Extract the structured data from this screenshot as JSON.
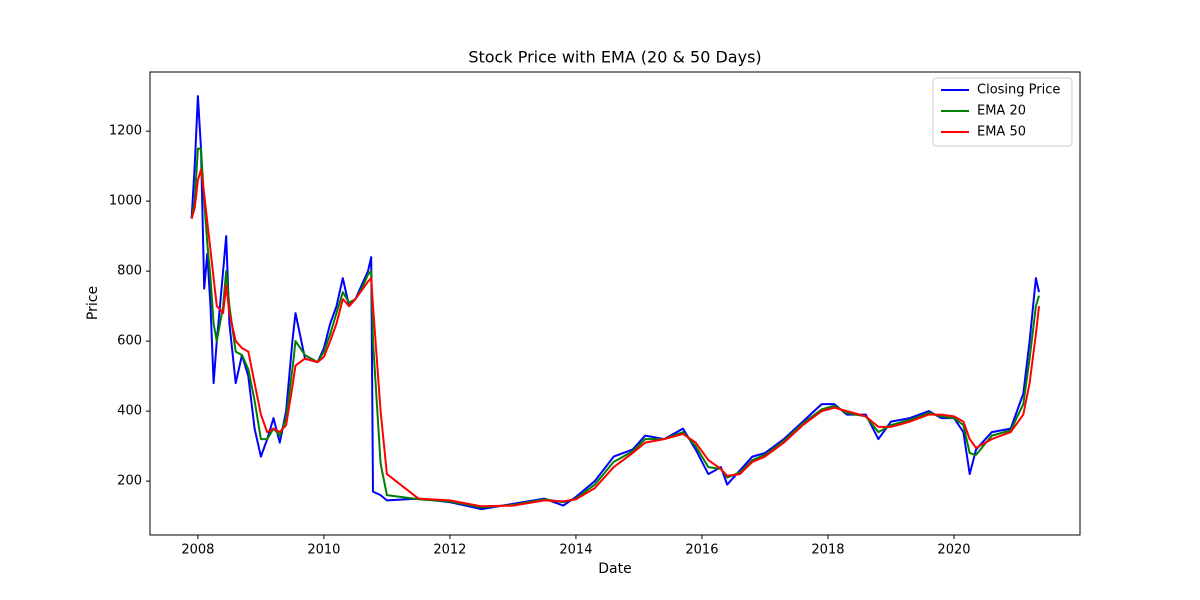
{
  "chart_data": {
    "type": "line",
    "title": "Stock Price with EMA (20 & 50 Days)",
    "x_label": "Date",
    "y_label": "Price",
    "x": [
      2007.9,
      2007.95,
      2008.0,
      2008.05,
      2008.1,
      2008.15,
      2008.2,
      2008.25,
      2008.3,
      2008.4,
      2008.45,
      2008.5,
      2008.6,
      2008.7,
      2008.8,
      2008.9,
      2009.0,
      2009.1,
      2009.2,
      2009.3,
      2009.4,
      2009.5,
      2009.55,
      2009.7,
      2009.9,
      2010.0,
      2010.1,
      2010.2,
      2010.3,
      2010.4,
      2010.5,
      2010.6,
      2010.7,
      2010.75,
      2010.78,
      2010.9,
      2011.0,
      2011.5,
      2012.0,
      2012.5,
      2013.0,
      2013.5,
      2013.8,
      2014.0,
      2014.3,
      2014.6,
      2014.9,
      2015.1,
      2015.4,
      2015.7,
      2015.9,
      2016.1,
      2016.3,
      2016.4,
      2016.6,
      2016.8,
      2017.0,
      2017.3,
      2017.6,
      2017.9,
      2018.1,
      2018.3,
      2018.6,
      2018.8,
      2019.0,
      2019.3,
      2019.6,
      2019.8,
      2020.0,
      2020.15,
      2020.25,
      2020.35,
      2020.6,
      2020.9,
      2021.1,
      2021.2,
      2021.3,
      2021.35
    ],
    "series": [
      {
        "name": "Closing Price",
        "color": "#0000ff",
        "values": [
          950,
          1100,
          1300,
          1150,
          750,
          850,
          700,
          480,
          600,
          800,
          900,
          650,
          480,
          560,
          500,
          350,
          270,
          320,
          380,
          310,
          400,
          600,
          680,
          550,
          540,
          580,
          650,
          700,
          780,
          700,
          720,
          760,
          800,
          840,
          170,
          160,
          145,
          150,
          140,
          120,
          135,
          150,
          130,
          155,
          200,
          270,
          290,
          330,
          320,
          350,
          290,
          220,
          240,
          190,
          230,
          270,
          280,
          320,
          370,
          420,
          420,
          390,
          390,
          320,
          370,
          380,
          400,
          380,
          380,
          340,
          220,
          290,
          340,
          350,
          450,
          600,
          780,
          740
        ]
      },
      {
        "name": "EMA 20",
        "color": "#008000",
        "values": [
          950,
          1000,
          1150,
          1150,
          1000,
          880,
          780,
          650,
          600,
          700,
          800,
          700,
          570,
          560,
          520,
          430,
          320,
          320,
          350,
          330,
          380,
          520,
          600,
          560,
          540,
          570,
          620,
          680,
          740,
          710,
          720,
          750,
          790,
          800,
          600,
          250,
          160,
          148,
          142,
          125,
          132,
          148,
          140,
          150,
          190,
          255,
          285,
          320,
          320,
          340,
          300,
          240,
          235,
          210,
          225,
          260,
          275,
          315,
          365,
          405,
          415,
          395,
          385,
          340,
          360,
          375,
          395,
          385,
          380,
          360,
          280,
          275,
          330,
          345,
          420,
          550,
          700,
          730
        ]
      },
      {
        "name": "EMA 50",
        "color": "#ff0000",
        "values": [
          950,
          980,
          1060,
          1090,
          1020,
          940,
          860,
          780,
          700,
          680,
          760,
          680,
          600,
          580,
          570,
          480,
          390,
          340,
          350,
          340,
          360,
          470,
          530,
          550,
          540,
          555,
          600,
          650,
          720,
          700,
          720,
          745,
          770,
          780,
          700,
          400,
          220,
          150,
          145,
          128,
          130,
          145,
          142,
          148,
          180,
          240,
          280,
          310,
          320,
          335,
          310,
          260,
          235,
          215,
          220,
          255,
          270,
          310,
          360,
          400,
          410,
          400,
          385,
          355,
          355,
          370,
          390,
          390,
          385,
          370,
          320,
          295,
          320,
          340,
          390,
          480,
          620,
          700
        ]
      }
    ],
    "xlim": [
      2007.24,
      2022.0
    ],
    "xticks": [
      2008,
      2010,
      2012,
      2014,
      2016,
      2018,
      2020
    ],
    "ylim": [
      46,
      1369
    ],
    "yticks": [
      200,
      400,
      600,
      800,
      1000,
      1200
    ],
    "grid": false,
    "legend": "upper right"
  }
}
